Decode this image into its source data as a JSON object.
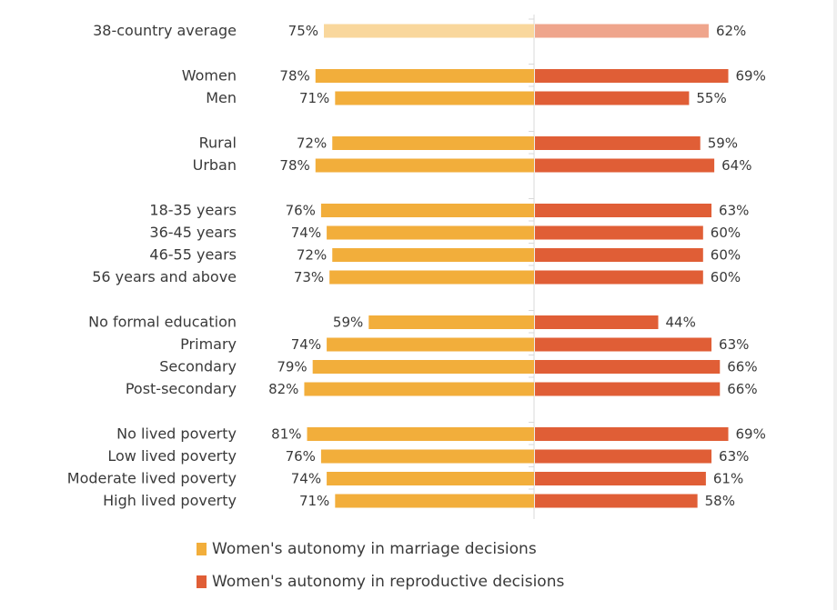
{
  "chart_data": {
    "type": "bar",
    "orientation": "horizontal-diverging",
    "title": "",
    "xlabel": "",
    "ylabel": "",
    "categories": [
      "38-country average",
      "Women",
      "Men",
      "Rural",
      "Urban",
      "18-35 years",
      "36-45 years",
      "46-55 years",
      "56 years and above",
      "No formal education",
      "Primary",
      "Secondary",
      "Post-secondary",
      "No lived poverty",
      "Low lived poverty",
      "Moderate lived poverty",
      "High lived poverty"
    ],
    "groups": [
      [
        0
      ],
      [
        1,
        2
      ],
      [
        3,
        4
      ],
      [
        5,
        6,
        7,
        8
      ],
      [
        9,
        10,
        11,
        12
      ],
      [
        13,
        14,
        15,
        16
      ]
    ],
    "series": [
      {
        "name": "Women's autonomy in marriage decisions",
        "color": "#F2AE3B",
        "highlight_color": "#F9D79C",
        "direction": "left",
        "values": [
          75,
          78,
          71,
          72,
          78,
          76,
          74,
          72,
          73,
          59,
          74,
          79,
          82,
          81,
          76,
          74,
          71
        ],
        "labels": [
          "75%",
          "78%",
          "71%",
          "72%",
          "78%",
          "76%",
          "74%",
          "72%",
          "73%",
          "59%",
          "74%",
          "79%",
          "82%",
          "81%",
          "76%",
          "74%",
          "71%"
        ]
      },
      {
        "name": "Women's autonomy in reproductive decisions",
        "color": "#E05E36",
        "highlight_color": "#EFA58C",
        "direction": "right",
        "values": [
          62,
          69,
          55,
          59,
          64,
          63,
          60,
          60,
          60,
          44,
          63,
          66,
          66,
          69,
          63,
          61,
          58
        ],
        "labels": [
          "62%",
          "69%",
          "55%",
          "59%",
          "64%",
          "63%",
          "60%",
          "60%",
          "60%",
          "44%",
          "63%",
          "66%",
          "66%",
          "69%",
          "63%",
          "61%",
          "58%"
        ]
      }
    ],
    "highlighted_category": "38-country average",
    "unit": "%",
    "xlim": [
      0,
      100
    ],
    "grid": false,
    "legend_position": "bottom"
  }
}
